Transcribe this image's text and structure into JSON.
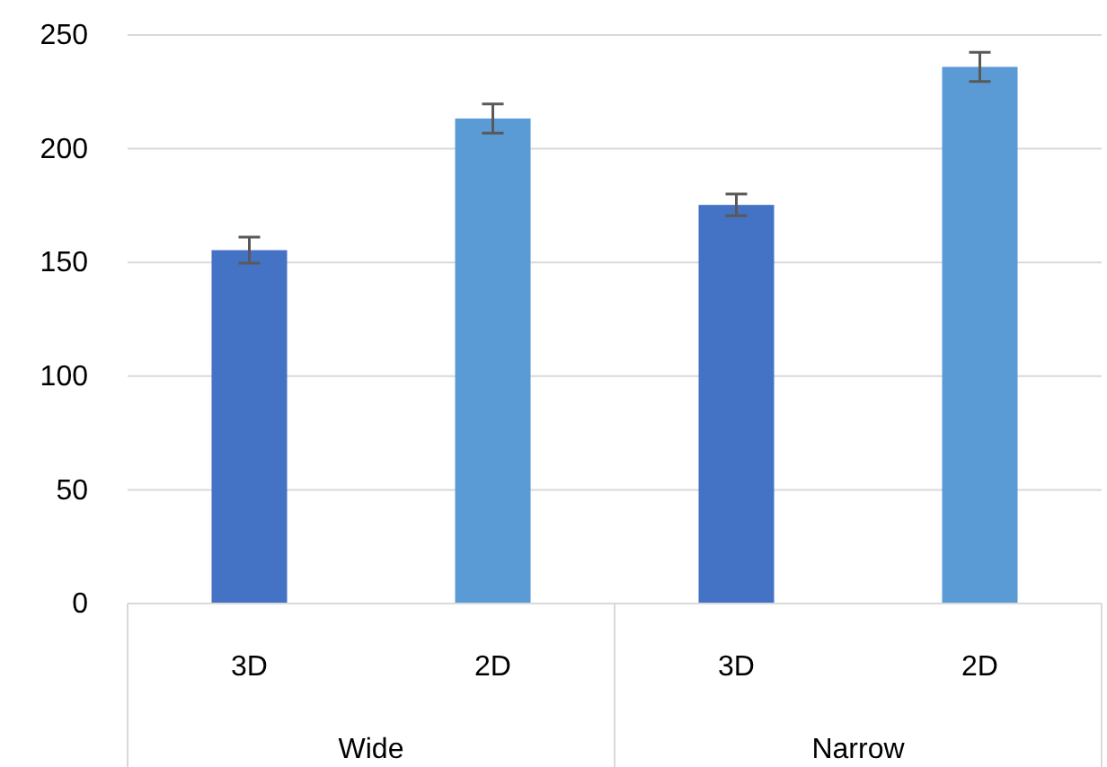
{
  "chart_data": {
    "type": "bar",
    "categories": [
      "3D",
      "2D",
      "3D",
      "2D"
    ],
    "values": [
      155.4,
      213.3,
      175.3,
      236
    ],
    "errors": [
      5.7,
      6.4,
      4.8,
      6.4
    ],
    "colors": [
      "#4472c4",
      "#5b9bd5",
      "#4472c4",
      "#5b9bd5"
    ],
    "ylim": [
      0,
      250
    ],
    "yticks": [
      0,
      50,
      100,
      150,
      200,
      250
    ],
    "grid": "y",
    "annotations": [
      "Wide",
      "Narrow"
    ]
  }
}
